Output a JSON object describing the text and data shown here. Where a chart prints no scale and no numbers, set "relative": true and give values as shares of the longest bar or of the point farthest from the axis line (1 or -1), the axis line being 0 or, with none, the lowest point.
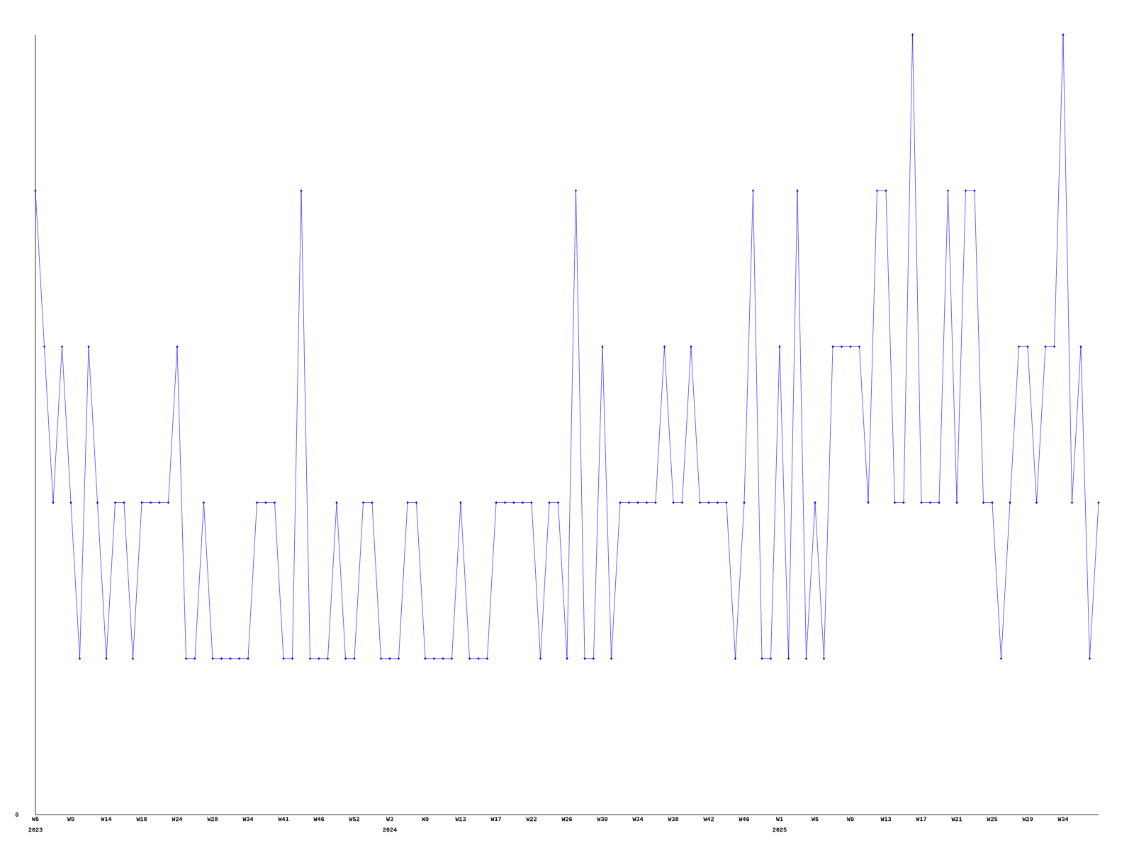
{
  "chart_data": {
    "type": "line",
    "relative": true,
    "marker": "diamond",
    "line_style": "solid",
    "grid": false,
    "categories": [
      "W5",
      null,
      null,
      null,
      "W9",
      null,
      null,
      null,
      "W14",
      null,
      null,
      null,
      "W18",
      null,
      null,
      null,
      "W24",
      null,
      null,
      null,
      "W28",
      null,
      null,
      null,
      "W34",
      null,
      null,
      null,
      "W41",
      null,
      null,
      null,
      "W46",
      null,
      null,
      null,
      "W52",
      null,
      null,
      null,
      "W3",
      null,
      null,
      null,
      "W9",
      null,
      null,
      null,
      "W13",
      null,
      null,
      null,
      "W17",
      null,
      null,
      null,
      "W22",
      null,
      null,
      null,
      "W26",
      null,
      null,
      null,
      "W30",
      null,
      null,
      null,
      "W34",
      null,
      null,
      null,
      "W38",
      null,
      null,
      null,
      "W42",
      null,
      null,
      null,
      "W46",
      null,
      null,
      null,
      "W1",
      null,
      null,
      null,
      "W5",
      null,
      null,
      null,
      "W9",
      null,
      null,
      null,
      "W13",
      null,
      null,
      null,
      "W17",
      null,
      null,
      null,
      "W21",
      null,
      null,
      null,
      "W25",
      null,
      null,
      null,
      "W29",
      null,
      null,
      null,
      "W34",
      null,
      null,
      null,
      null
    ],
    "series": [
      {
        "color": "#0000ff",
        "values": [
          0.8,
          0.6,
          0.4,
          0.6,
          0.4,
          0.2,
          0.6,
          0.4,
          0.2,
          0.4,
          0.4,
          0.2,
          0.4,
          0.4,
          0.4,
          0.4,
          0.6,
          0.2,
          0.2,
          0.4,
          0.2,
          0.2,
          0.2,
          0.2,
          0.2,
          0.4,
          0.4,
          0.4,
          0.2,
          0.2,
          0.8,
          0.2,
          0.2,
          0.2,
          0.4,
          0.2,
          0.2,
          0.4,
          0.4,
          0.2,
          0.2,
          0.2,
          0.4,
          0.4,
          0.2,
          0.2,
          0.2,
          0.2,
          0.4,
          0.2,
          0.2,
          0.2,
          0.4,
          0.4,
          0.4,
          0.4,
          0.4,
          0.2,
          0.4,
          0.4,
          0.2,
          0.8,
          0.2,
          0.2,
          0.6,
          0.2,
          0.4,
          0.4,
          0.4,
          0.4,
          0.4,
          0.6,
          0.4,
          0.4,
          0.6,
          0.4,
          0.4,
          0.4,
          0.4,
          0.2,
          0.4,
          0.8,
          0.2,
          0.2,
          0.6,
          0.2,
          0.8,
          0.2,
          0.4,
          0.2,
          0.6,
          0.6,
          0.6,
          0.6,
          0.4,
          0.8,
          0.8,
          0.4,
          0.4,
          1.0,
          0.4,
          0.4,
          0.4,
          0.8,
          0.4,
          0.8,
          0.8,
          0.4,
          0.4,
          0.2,
          0.4,
          0.6,
          0.6,
          0.4,
          0.6,
          0.6,
          1.0,
          0.4,
          0.6,
          0.2,
          0.4
        ]
      }
    ],
    "annotations": [
      "2023",
      "2024",
      "2025",
      "0"
    ]
  }
}
